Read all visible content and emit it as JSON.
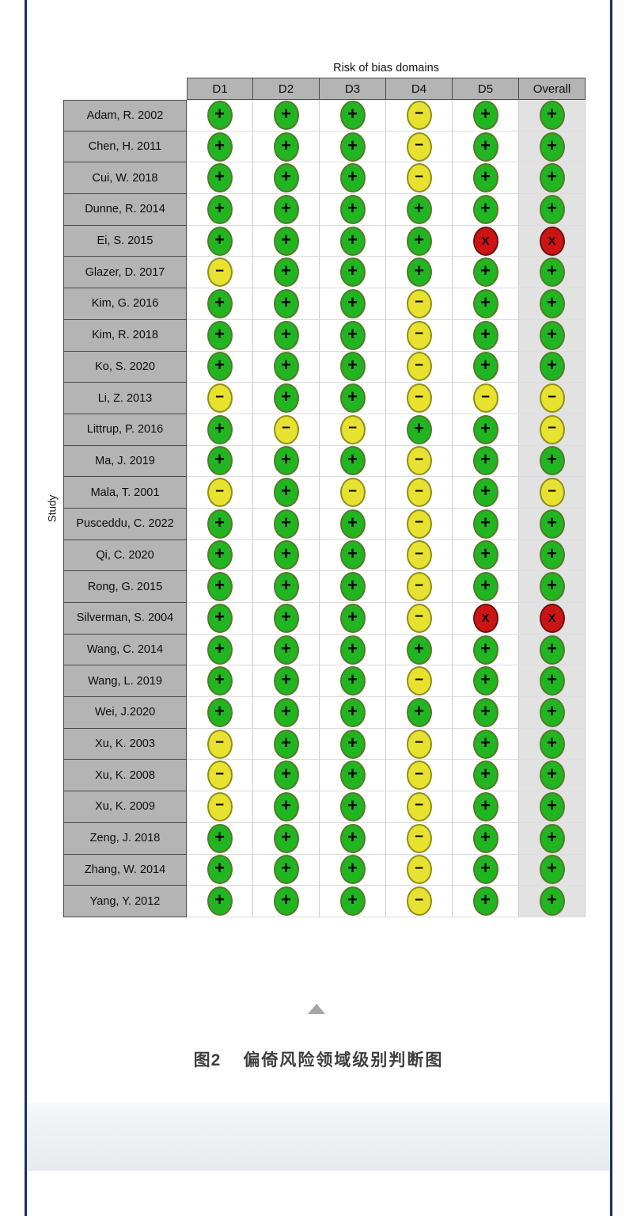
{
  "caption": {
    "label": "图2",
    "text": "偏倚风险领域级别判断图"
  },
  "colors": {
    "frame_navy": "#14316b",
    "header_gray": "#b4b4b4",
    "overall_column_bg": "#e2e2e2",
    "low_risk_green": "#21b521",
    "some_concerns_yellow": "#e7e12f",
    "high_risk_red": "#cc1414",
    "scroll_triangle_gray": "#a6a6a6"
  },
  "judgment_styles": {
    "+": {
      "cls": "low",
      "symbol": "+",
      "symcls": "sym-plus",
      "icon": "plus-icon",
      "label": "Low risk"
    },
    "-": {
      "cls": "some",
      "symbol": "−",
      "symcls": "sym-minus",
      "icon": "minus-icon",
      "label": "Some concerns"
    },
    "x": {
      "cls": "high",
      "symbol": "X",
      "symcls": "sym-x",
      "icon": "x-icon",
      "label": "High risk"
    }
  },
  "chart_data": {
    "type": "heatmap",
    "title": "Risk of bias domains",
    "ylabel": "Study",
    "columns": [
      "D1",
      "D2",
      "D3",
      "D4",
      "D5",
      "Overall"
    ],
    "legend": {
      "+": "low risk (green)",
      "-": "some concerns (yellow)",
      "x": "high risk (red)"
    },
    "studies": [
      {
        "name": "Adam, R. 2002",
        "judgments": [
          "+",
          "+",
          "+",
          "-",
          "+",
          "+"
        ]
      },
      {
        "name": "Chen, H. 2011",
        "judgments": [
          "+",
          "+",
          "+",
          "-",
          "+",
          "+"
        ]
      },
      {
        "name": "Cui, W. 2018",
        "judgments": [
          "+",
          "+",
          "+",
          "-",
          "+",
          "+"
        ]
      },
      {
        "name": "Dunne, R. 2014",
        "judgments": [
          "+",
          "+",
          "+",
          "+",
          "+",
          "+"
        ]
      },
      {
        "name": "Ei, S. 2015",
        "judgments": [
          "+",
          "+",
          "+",
          "+",
          "x",
          "x"
        ]
      },
      {
        "name": "Glazer, D. 2017",
        "judgments": [
          "-",
          "+",
          "+",
          "+",
          "+",
          "+"
        ]
      },
      {
        "name": "Kim, G. 2016",
        "judgments": [
          "+",
          "+",
          "+",
          "-",
          "+",
          "+"
        ]
      },
      {
        "name": "Kim, R. 2018",
        "judgments": [
          "+",
          "+",
          "+",
          "-",
          "+",
          "+"
        ]
      },
      {
        "name": "Ko, S. 2020",
        "judgments": [
          "+",
          "+",
          "+",
          "-",
          "+",
          "+"
        ]
      },
      {
        "name": "Li, Z. 2013",
        "judgments": [
          "-",
          "+",
          "+",
          "-",
          "-",
          "-"
        ]
      },
      {
        "name": "Littrup, P. 2016",
        "judgments": [
          "+",
          "-",
          "-",
          "+",
          "+",
          "-"
        ]
      },
      {
        "name": "Ma, J. 2019",
        "judgments": [
          "+",
          "+",
          "+",
          "-",
          "+",
          "+"
        ]
      },
      {
        "name": "Mala, T. 2001",
        "judgments": [
          "-",
          "+",
          "-",
          "-",
          "+",
          "-"
        ]
      },
      {
        "name": "Pusceddu, C. 2022",
        "judgments": [
          "+",
          "+",
          "+",
          "-",
          "+",
          "+"
        ]
      },
      {
        "name": "Qi, C. 2020",
        "judgments": [
          "+",
          "+",
          "+",
          "-",
          "+",
          "+"
        ]
      },
      {
        "name": "Rong, G. 2015",
        "judgments": [
          "+",
          "+",
          "+",
          "-",
          "+",
          "+"
        ]
      },
      {
        "name": "Silverman, S. 2004",
        "judgments": [
          "+",
          "+",
          "+",
          "-",
          "x",
          "x"
        ]
      },
      {
        "name": "Wang, C. 2014",
        "judgments": [
          "+",
          "+",
          "+",
          "+",
          "+",
          "+"
        ]
      },
      {
        "name": "Wang, L. 2019",
        "judgments": [
          "+",
          "+",
          "+",
          "-",
          "+",
          "+"
        ]
      },
      {
        "name": "Wei, J.2020",
        "judgments": [
          "+",
          "+",
          "+",
          "+",
          "+",
          "+"
        ]
      },
      {
        "name": "Xu, K. 2003",
        "judgments": [
          "-",
          "+",
          "+",
          "-",
          "+",
          "+"
        ]
      },
      {
        "name": "Xu, K. 2008",
        "judgments": [
          "-",
          "+",
          "+",
          "-",
          "+",
          "+"
        ]
      },
      {
        "name": "Xu, K. 2009",
        "judgments": [
          "-",
          "+",
          "+",
          "-",
          "+",
          "+"
        ]
      },
      {
        "name": "Zeng, J. 2018",
        "judgments": [
          "+",
          "+",
          "+",
          "-",
          "+",
          "+"
        ]
      },
      {
        "name": "Zhang, W. 2014",
        "judgments": [
          "+",
          "+",
          "+",
          "-",
          "+",
          "+"
        ]
      },
      {
        "name": "Yang, Y. 2012",
        "judgments": [
          "+",
          "+",
          "+",
          "-",
          "+",
          "+"
        ]
      }
    ]
  }
}
